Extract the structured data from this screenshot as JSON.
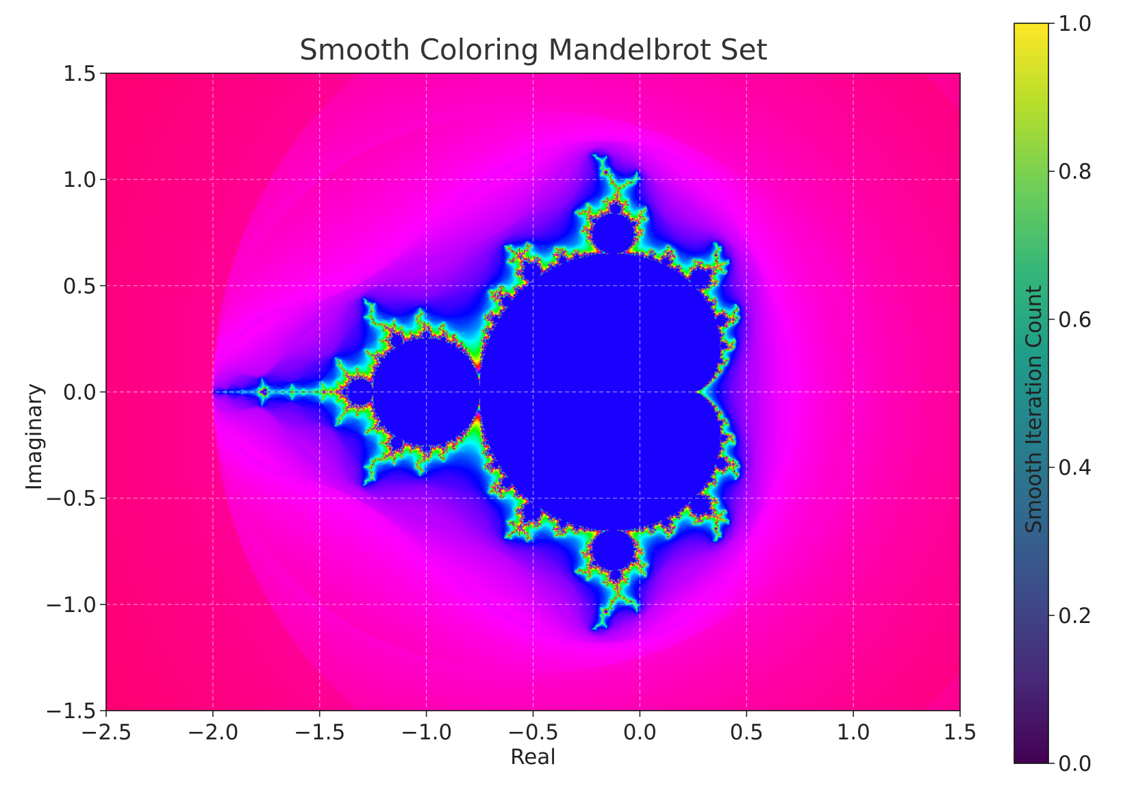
{
  "chart_data": {
    "type": "heatmap",
    "title": "Smooth Coloring Mandelbrot Set",
    "xlabel": "Real",
    "ylabel": "Imaginary",
    "xlim": [
      -2.5,
      1.5
    ],
    "ylim": [
      -1.5,
      1.5
    ],
    "xticks": [
      "−2.5",
      "−2.0",
      "−1.5",
      "−1.0",
      "−0.5",
      "0.0",
      "0.5",
      "1.0",
      "1.5"
    ],
    "xtick_values": [
      -2.5,
      -2.0,
      -1.5,
      -1.0,
      -0.5,
      0.0,
      0.5,
      1.0,
      1.5
    ],
    "yticks": [
      "−1.5",
      "−1.0",
      "−0.5",
      "0.0",
      "0.5",
      "1.0",
      "1.5"
    ],
    "ytick_values": [
      -1.5,
      -1.0,
      -0.5,
      0.0,
      0.5,
      1.0,
      1.5
    ],
    "grid": true,
    "colormap": "hsv",
    "colorbar": {
      "label": "Smooth Iteration Count",
      "range": [
        0.0,
        1.0
      ],
      "ticks": [
        "0.0",
        "0.2",
        "0.4",
        "0.6",
        "0.8",
        "1.0"
      ],
      "tick_values": [
        0.0,
        0.2,
        0.4,
        0.6,
        0.8,
        1.0
      ],
      "colormap": "viridis"
    },
    "interior_color": "#1a00ff"
  }
}
